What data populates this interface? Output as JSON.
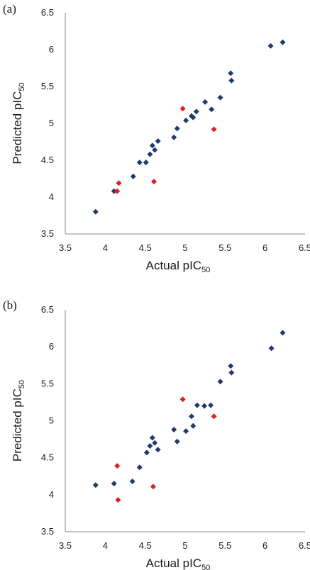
{
  "chart_data": [
    {
      "type": "scatter",
      "panel_label": "(a)",
      "xlabel": "Actual pIC",
      "xlabel_sub": "50",
      "ylabel": "Predicted pIC",
      "ylabel_sub": "50",
      "xlim": [
        3.5,
        6.5
      ],
      "ylim": [
        3.5,
        6.5
      ],
      "xticks": [
        "3.5",
        "4",
        "4.5",
        "5",
        "5.5",
        "6",
        "6.5"
      ],
      "yticks": [
        "3.5",
        "4",
        "4.5",
        "5",
        "5.5",
        "6",
        "6.5"
      ],
      "grid": false,
      "legend": "none",
      "series": [
        {
          "color": "#1f3a6e",
          "marker": "diamond",
          "points": [
            [
              3.88,
              3.8
            ],
            [
              4.11,
              4.08
            ],
            [
              4.35,
              4.28
            ],
            [
              4.43,
              4.47
            ],
            [
              4.51,
              4.47
            ],
            [
              4.56,
              4.58
            ],
            [
              4.59,
              4.7
            ],
            [
              4.62,
              4.64
            ],
            [
              4.66,
              4.76
            ],
            [
              4.86,
              4.81
            ],
            [
              4.9,
              4.93
            ],
            [
              5.01,
              5.04
            ],
            [
              5.08,
              5.1
            ],
            [
              5.1,
              5.08
            ],
            [
              5.14,
              5.16
            ],
            [
              5.25,
              5.29
            ],
            [
              5.33,
              5.19
            ],
            [
              5.44,
              5.35
            ],
            [
              5.57,
              5.68
            ],
            [
              5.58,
              5.58
            ],
            [
              6.07,
              6.05
            ],
            [
              6.22,
              6.1
            ]
          ]
        },
        {
          "color": "#e02020",
          "marker": "diamond",
          "points": [
            [
              4.15,
              4.08
            ],
            [
              4.17,
              4.19
            ],
            [
              4.61,
              4.21
            ],
            [
              4.97,
              5.2
            ],
            [
              5.36,
              4.92
            ]
          ]
        }
      ]
    },
    {
      "type": "scatter",
      "panel_label": "(b)",
      "xlabel": "Actual pIC",
      "xlabel_sub": "50",
      "ylabel": "Predicted pIC",
      "ylabel_sub": "50",
      "xlim": [
        3.5,
        6.5
      ],
      "ylim": [
        3.5,
        6.5
      ],
      "xticks": [
        "3.5",
        "4",
        "4.5",
        "5",
        "5.5",
        "6",
        "6.5"
      ],
      "yticks": [
        "3.5",
        "4",
        "4.5",
        "5",
        "5.5",
        "6",
        "6.5"
      ],
      "grid": false,
      "legend": "none",
      "series": [
        {
          "color": "#1f3a6e",
          "marker": "diamond",
          "points": [
            [
              3.88,
              4.13
            ],
            [
              4.11,
              4.15
            ],
            [
              4.34,
              4.18
            ],
            [
              4.43,
              4.37
            ],
            [
              4.52,
              4.57
            ],
            [
              4.56,
              4.66
            ],
            [
              4.59,
              4.77
            ],
            [
              4.62,
              4.7
            ],
            [
              4.66,
              4.61
            ],
            [
              4.86,
              4.88
            ],
            [
              4.9,
              4.72
            ],
            [
              5.01,
              4.86
            ],
            [
              5.08,
              5.06
            ],
            [
              5.1,
              4.93
            ],
            [
              5.15,
              5.21
            ],
            [
              5.24,
              5.2
            ],
            [
              5.32,
              5.21
            ],
            [
              5.44,
              5.53
            ],
            [
              5.57,
              5.74
            ],
            [
              5.58,
              5.65
            ],
            [
              6.08,
              5.98
            ],
            [
              6.22,
              6.19
            ]
          ]
        },
        {
          "color": "#e02020",
          "marker": "diamond",
          "points": [
            [
              4.15,
              4.39
            ],
            [
              4.16,
              3.93
            ],
            [
              4.6,
              4.11
            ],
            [
              4.97,
              5.29
            ],
            [
              5.36,
              5.06
            ]
          ]
        }
      ]
    }
  ]
}
